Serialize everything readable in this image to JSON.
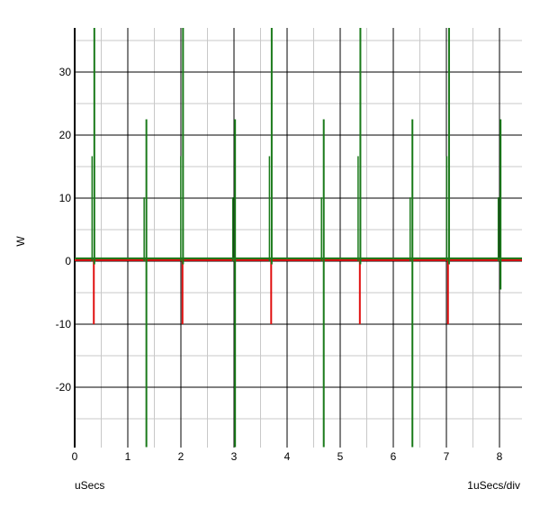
{
  "chart_data": {
    "type": "line",
    "ylabel": "W",
    "xlabel": "uSecs",
    "scale_label": "1uSecs/div",
    "xlim": [
      0,
      8.4
    ],
    "ylim": [
      -29.5,
      37
    ],
    "grid": true,
    "x_ticks": [
      0,
      1,
      2,
      3,
      4,
      5,
      6,
      7,
      8
    ],
    "y_ticks": [
      30,
      20,
      10,
      0,
      -10,
      -20
    ],
    "colors": {
      "series_1": "#e01010",
      "series_2": "#1a7a1a",
      "major_grid": "#000000",
      "minor_grid": "#c8c8c8"
    },
    "series": [
      {
        "color": "#e01010",
        "baseline": 0.2,
        "spikes": [
          {
            "x": 0.36,
            "y": -10
          },
          {
            "x": 2.03,
            "y": -10
          },
          {
            "x": 3.7,
            "y": -10
          },
          {
            "x": 5.37,
            "y": -10
          },
          {
            "x": 7.03,
            "y": -10
          }
        ]
      },
      {
        "color": "#1a7a1a",
        "baseline": 0.3,
        "spikes": [
          {
            "x": 0.37,
            "low": -0.5,
            "high": 37
          },
          {
            "x": 1.35,
            "low": -29.5,
            "high": 22.5
          },
          {
            "x": 2.04,
            "low": -0.5,
            "high": 37
          },
          {
            "x": 3.02,
            "low": -29.5,
            "high": 22.5
          },
          {
            "x": 3.71,
            "low": -0.5,
            "high": 37
          },
          {
            "x": 4.69,
            "low": -29.5,
            "high": 22.5
          },
          {
            "x": 5.38,
            "low": -0.5,
            "high": 37
          },
          {
            "x": 6.36,
            "low": -29.5,
            "high": 22.5
          },
          {
            "x": 7.05,
            "low": -0.5,
            "high": 37
          },
          {
            "x": 8.02,
            "low": -4.5,
            "high": 22.5
          }
        ]
      }
    ]
  }
}
